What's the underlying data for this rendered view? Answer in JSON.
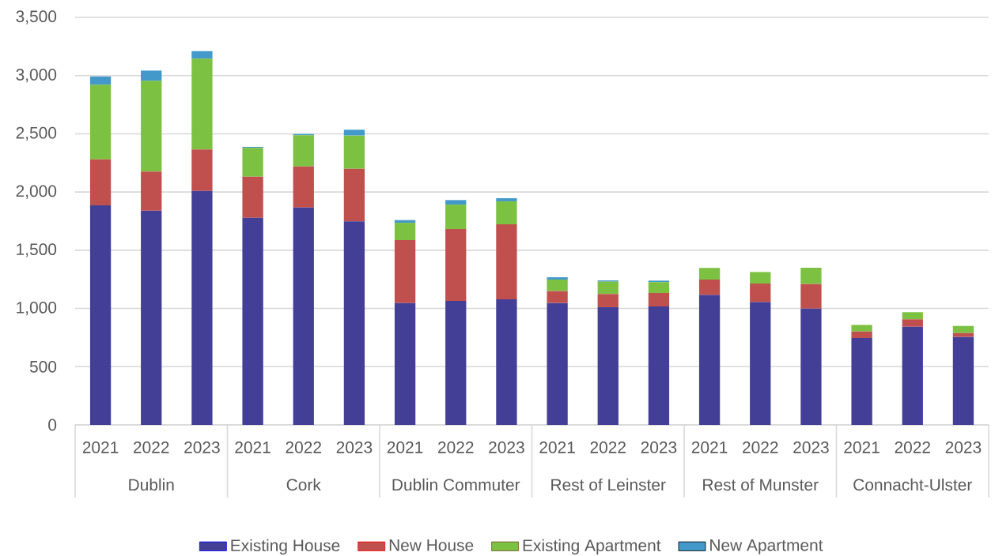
{
  "chart_data": {
    "type": "bar",
    "stacked": true,
    "categories": [
      "2021",
      "2022",
      "2023",
      "2021",
      "2022",
      "2023",
      "2021",
      "2022",
      "2023",
      "2021",
      "2022",
      "2023",
      "2021",
      "2022",
      "2023",
      "2021",
      "2022",
      "2023"
    ],
    "annotations": [
      "Dublin",
      "Cork",
      "Dublin Commuter",
      "Rest of Leinster",
      "Rest of Munster",
      "Connacht-Ulster"
    ],
    "series": [
      {
        "name": "Existing House",
        "color": "#433f97",
        "values": [
          1886,
          1840,
          2010,
          1779,
          1867,
          1748,
          1047,
          1065,
          1078,
          1047,
          1011,
          1017,
          1115,
          1054,
          999,
          746,
          843,
          755
        ]
      },
      {
        "name": "New House",
        "color": "#c0504d",
        "values": [
          395,
          335,
          355,
          353,
          353,
          452,
          540,
          617,
          645,
          102,
          113,
          116,
          133,
          160,
          211,
          56,
          64,
          34
        ]
      },
      {
        "name": "Existing Apartment",
        "color": "#7dc142",
        "values": [
          640,
          780,
          780,
          247,
          267,
          285,
          149,
          210,
          197,
          99,
          106,
          93,
          100,
          99,
          140,
          57,
          61,
          61
        ]
      },
      {
        "name": "New Apartment",
        "color": "#4399c9",
        "values": [
          72,
          88,
          65,
          9,
          11,
          50,
          23,
          39,
          27,
          20,
          11,
          13,
          0,
          null,
          0,
          0,
          0,
          0
        ]
      }
    ],
    "ylim": [
      0,
      3500
    ],
    "yticks": [
      0,
      500,
      {
        "value": 1000,
        "label": "1,000"
      },
      {
        "value": 1500,
        "label": "1,500"
      },
      {
        "value": 2000,
        "label": "2,000"
      },
      {
        "value": 2500,
        "label": "2,500"
      },
      {
        "value": 3000,
        "label": "3,000"
      },
      {
        "value": 3500,
        "label": "3,500"
      }
    ],
    "grid": "y",
    "legend": "bottom"
  }
}
